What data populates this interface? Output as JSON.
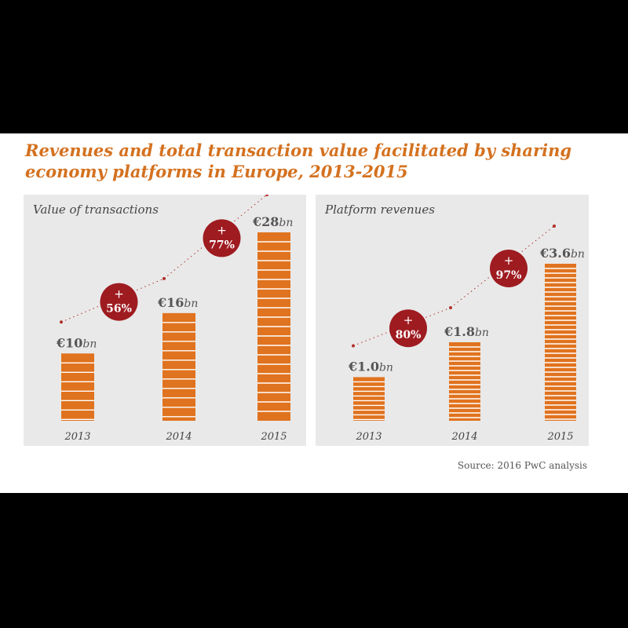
{
  "title": "Revenues and total transaction value facilitated by sharing economy platforms in Europe, 2013-2015",
  "source": "Source: 2016 PwC analysis",
  "colors": {
    "bar": "#e0731f",
    "stripe": "#ffffff",
    "badge": "#9e1b20",
    "title": "#d4711f",
    "dots": "#b0302a"
  },
  "chart_data": [
    {
      "type": "bar",
      "label": "Value of transactions",
      "categories": [
        "2013",
        "2014",
        "2015"
      ],
      "values": [
        10,
        16,
        28
      ],
      "value_labels": [
        {
          "prefix": "€10",
          "unit": "bn"
        },
        {
          "prefix": "€16",
          "unit": "bn"
        },
        {
          "prefix": "€28",
          "unit": "bn"
        }
      ],
      "growth": [
        "56%",
        "77%"
      ],
      "ylim": [
        0,
        28
      ]
    },
    {
      "type": "bar",
      "label": "Platform revenues",
      "categories": [
        "2013",
        "2014",
        "2015"
      ],
      "values": [
        1.0,
        1.8,
        3.6
      ],
      "value_labels": [
        {
          "prefix": "€1.0",
          "unit": "bn"
        },
        {
          "prefix": "€1.8",
          "unit": "bn"
        },
        {
          "prefix": "€3.6",
          "unit": "bn"
        }
      ],
      "growth": [
        "80%",
        "97%"
      ],
      "ylim": [
        0,
        3.6
      ]
    }
  ]
}
